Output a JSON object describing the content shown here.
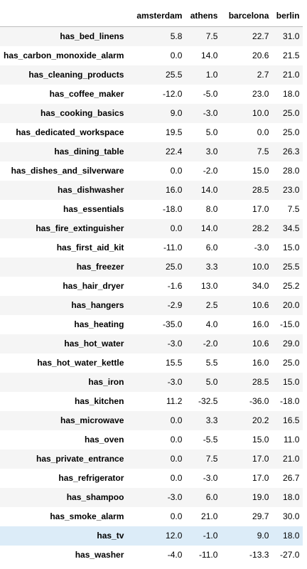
{
  "table": {
    "index_header": "",
    "columns": [
      "amsterdam",
      "athens",
      "barcelona",
      "berlin"
    ],
    "rows": [
      {
        "label": "has_bed_linens",
        "values": [
          "5.8",
          "7.5",
          "22.7",
          "31.0"
        ]
      },
      {
        "label": "has_carbon_monoxide_alarm",
        "values": [
          "0.0",
          "14.0",
          "20.6",
          "21.5"
        ]
      },
      {
        "label": "has_cleaning_products",
        "values": [
          "25.5",
          "1.0",
          "2.7",
          "21.0"
        ]
      },
      {
        "label": "has_coffee_maker",
        "values": [
          "-12.0",
          "-5.0",
          "23.0",
          "18.0"
        ]
      },
      {
        "label": "has_cooking_basics",
        "values": [
          "9.0",
          "-3.0",
          "10.0",
          "25.0"
        ]
      },
      {
        "label": "has_dedicated_workspace",
        "values": [
          "19.5",
          "5.0",
          "0.0",
          "25.0"
        ]
      },
      {
        "label": "has_dining_table",
        "values": [
          "22.4",
          "3.0",
          "7.5",
          "26.3"
        ]
      },
      {
        "label": "has_dishes_and_silverware",
        "values": [
          "0.0",
          "-2.0",
          "15.0",
          "28.0"
        ]
      },
      {
        "label": "has_dishwasher",
        "values": [
          "16.0",
          "14.0",
          "28.5",
          "23.0"
        ]
      },
      {
        "label": "has_essentials",
        "values": [
          "-18.0",
          "8.0",
          "17.0",
          "7.5"
        ]
      },
      {
        "label": "has_fire_extinguisher",
        "values": [
          "0.0",
          "14.0",
          "28.2",
          "34.5"
        ]
      },
      {
        "label": "has_first_aid_kit",
        "values": [
          "-11.0",
          "6.0",
          "-3.0",
          "15.0"
        ]
      },
      {
        "label": "has_freezer",
        "values": [
          "25.0",
          "3.3",
          "10.0",
          "25.5"
        ]
      },
      {
        "label": "has_hair_dryer",
        "values": [
          "-1.6",
          "13.0",
          "34.0",
          "25.2"
        ]
      },
      {
        "label": "has_hangers",
        "values": [
          "-2.9",
          "2.5",
          "10.6",
          "20.0"
        ]
      },
      {
        "label": "has_heating",
        "values": [
          "-35.0",
          "4.0",
          "16.0",
          "-15.0"
        ]
      },
      {
        "label": "has_hot_water",
        "values": [
          "-3.0",
          "-2.0",
          "10.6",
          "29.0"
        ]
      },
      {
        "label": "has_hot_water_kettle",
        "values": [
          "15.5",
          "5.5",
          "16.0",
          "25.0"
        ]
      },
      {
        "label": "has_iron",
        "values": [
          "-3.0",
          "5.0",
          "28.5",
          "15.0"
        ]
      },
      {
        "label": "has_kitchen",
        "values": [
          "11.2",
          "-32.5",
          "-36.0",
          "-18.0"
        ]
      },
      {
        "label": "has_microwave",
        "values": [
          "0.0",
          "3.3",
          "20.2",
          "16.5"
        ]
      },
      {
        "label": "has_oven",
        "values": [
          "0.0",
          "-5.5",
          "15.0",
          "11.0"
        ]
      },
      {
        "label": "has_private_entrance",
        "values": [
          "0.0",
          "7.5",
          "17.0",
          "21.0"
        ]
      },
      {
        "label": "has_refrigerator",
        "values": [
          "0.0",
          "-3.0",
          "17.0",
          "26.7"
        ]
      },
      {
        "label": "has_shampoo",
        "values": [
          "-3.0",
          "6.0",
          "19.0",
          "18.0"
        ]
      },
      {
        "label": "has_smoke_alarm",
        "values": [
          "0.0",
          "21.0",
          "29.7",
          "30.0"
        ]
      },
      {
        "label": "has_tv",
        "values": [
          "12.0",
          "-1.0",
          "9.0",
          "18.0"
        ],
        "highlighted": true
      },
      {
        "label": "has_washer",
        "values": [
          "-4.0",
          "-11.0",
          "-13.3",
          "-27.0"
        ]
      }
    ]
  },
  "colors": {
    "stripe": "#f5f5f5",
    "hover_row": "#dcecf8",
    "header_rule": "#bdbdbd"
  }
}
